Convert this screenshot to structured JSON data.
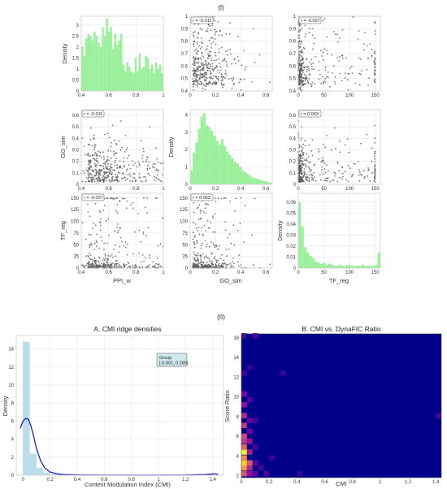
{
  "figure": {
    "section_1_label": "(I)",
    "section_2_label": "(II)"
  },
  "colors": {
    "hist_green": "#90ee90",
    "scatter_gray": "#555555",
    "hist_blue": "#add8e6",
    "kde_blue": "#1f1fcc",
    "heat_bg": "#00008b"
  },
  "chart_data": [
    {
      "id": "pairplot",
      "type": "scatter",
      "variables": [
        "PPI_w",
        "GO_sim",
        "TF_reg"
      ],
      "xlabels": [
        "PPI_w",
        "GO_sim",
        "TF_reg"
      ],
      "ylabels": [
        "Density",
        "GO_sim",
        "TF_reg"
      ],
      "diag_ylabel": "Density",
      "xlims": [
        [
          0.4,
          1.0
        ],
        [
          0.0,
          0.65
        ],
        [
          0,
          160
        ]
      ],
      "ylims": [
        [
          0.4,
          1.0
        ],
        [
          0.0,
          0.65
        ],
        [
          0,
          160
        ]
      ],
      "xticks": [
        [
          0.4,
          0.6,
          0.8,
          1.0
        ],
        [
          0.0,
          0.2,
          0.4,
          0.6
        ],
        [
          0,
          50,
          100,
          150
        ]
      ],
      "yticks": [
        [
          0.4,
          0.5,
          0.6,
          0.7,
          0.8,
          0.9,
          1.0
        ],
        [
          0.0,
          0.1,
          0.2,
          0.3,
          0.4,
          0.5,
          0.6
        ],
        [
          0,
          25,
          50,
          75,
          100,
          125,
          150
        ]
      ],
      "diag_hist": [
        {
          "var": "PPI_w",
          "range": [
            0.4,
            1.0
          ],
          "ylim": [
            0,
            3.4
          ],
          "yticks": [
            0.0,
            0.5,
            1.0,
            1.5,
            2.0,
            2.5,
            3.0
          ],
          "densities": [
            2.0,
            1.6,
            2.4,
            2.6,
            2.5,
            2.3,
            2.7,
            2.5,
            2.2,
            2.0,
            2.9,
            2.5,
            3.3,
            2.7,
            2.9,
            1.9,
            2.6,
            2.1,
            2.3,
            2.6,
            1.2,
            0.9,
            1.3,
            1.1,
            0.9,
            0.8,
            1.5,
            0.9,
            1.7,
            1.0,
            1.1,
            1.6,
            1.5,
            1.0,
            1.2,
            0.8,
            1.3,
            1.0,
            1.2,
            0.8
          ]
        },
        {
          "var": "GO_sim",
          "range": [
            0.0,
            0.65
          ],
          "ylim": [
            0,
            4.3
          ],
          "yticks": [
            0,
            1,
            2,
            3,
            4
          ],
          "densities": [
            0.8,
            1.8,
            2.4,
            3.2,
            3.9,
            4.1,
            3.4,
            3.3,
            3.1,
            2.8,
            2.5,
            2.3,
            2.6,
            2.2,
            1.9,
            1.7,
            1.5,
            1.3,
            1.2,
            1.0,
            0.8,
            0.7,
            0.6,
            0.5,
            0.4,
            0.35,
            0.3,
            0.25,
            0.2,
            0.18,
            0.15,
            0.1
          ]
        },
        {
          "var": "TF_reg",
          "range": [
            0,
            160
          ],
          "ylim": [
            0,
            0.068
          ],
          "yticks": [
            0.0,
            0.01,
            0.02,
            0.03,
            0.04,
            0.05,
            0.06
          ],
          "densities": [
            0.06,
            0.038,
            0.019,
            0.014,
            0.011,
            0.009,
            0.006,
            0.005,
            0.004,
            0.005,
            0.003,
            0.004,
            0.003,
            0.002,
            0.002,
            0.003,
            0.002,
            0.002,
            0.003,
            0.002,
            0.002,
            0.002,
            0.002,
            0.003,
            0.002,
            0.002,
            0.002,
            0.002,
            0.003,
            0.014
          ]
        }
      ],
      "correlations": [
        {
          "row": 0,
          "col": 1,
          "text": "r = -0.011"
        },
        {
          "row": 0,
          "col": 2,
          "text": "r = -0.027"
        },
        {
          "row": 1,
          "col": 0,
          "text": "r = -0.011"
        },
        {
          "row": 1,
          "col": 2,
          "text": "r = 0.063"
        },
        {
          "row": 2,
          "col": 0,
          "text": "r = -0.027"
        },
        {
          "row": 2,
          "col": 1,
          "text": "r = 0.063"
        }
      ],
      "distributions": {
        "PPI_w": "right-skewed on [0.4, 1.0], mode ~0.55",
        "GO_sim": "right-skewed on [0.0, 0.65], mode ~0.12",
        "TF_reg": "heavy-tailed on [0, 150], mass near 0, cap cluster at 150"
      }
    },
    {
      "id": "cmi-ridge",
      "type": "bar",
      "title": "A. CMI ridge densities",
      "xlabel": "Context Modulation Index (CMI)",
      "ylabel": "Density",
      "xlim": [
        -0.05,
        1.48
      ],
      "ylim": [
        0,
        15.5
      ],
      "xticks": [
        0.0,
        0.2,
        0.4,
        0.6,
        0.8,
        1.0,
        1.2,
        1.4
      ],
      "yticks": [
        0,
        2,
        4,
        6,
        8,
        10,
        12,
        14
      ],
      "hist_bins": [
        {
          "x0": -0.001,
          "x1": 0.05,
          "density": 14.8
        },
        {
          "x0": 0.05,
          "x1": 0.1,
          "density": 2.4
        },
        {
          "x0": 0.1,
          "x1": 0.15,
          "density": 0.8
        },
        {
          "x0": 0.15,
          "x1": 0.2,
          "density": 0.3
        },
        {
          "x0": 0.2,
          "x1": 0.25,
          "density": 0.1
        }
      ],
      "kde": {
        "x": [
          -0.02,
          0.0,
          0.02,
          0.04,
          0.06,
          0.08,
          0.1,
          0.13,
          0.16,
          0.2,
          0.25,
          0.3,
          0.4,
          0.6,
          0.9,
          1.2,
          1.35,
          1.42,
          1.44
        ],
        "y": [
          5.2,
          6.0,
          6.3,
          6.2,
          5.4,
          4.2,
          2.9,
          1.6,
          0.8,
          0.35,
          0.15,
          0.07,
          0.03,
          0.01,
          0.0,
          0.02,
          0.08,
          0.15,
          0.05
        ]
      },
      "legend": {
        "title": "Group",
        "entry": "[-0.001, 0.285]",
        "position": "top-right"
      }
    },
    {
      "id": "cmi-dynafic",
      "type": "heatmap",
      "title": "B. CMI vs. DynaFIC Ratio",
      "xlabel": "CMI",
      "ylabel": "Score Ratio",
      "xlim": [
        0,
        1.44
      ],
      "ylim": [
        1.8,
        16.4
      ],
      "xticks": [
        0.0,
        0.2,
        0.4,
        0.6,
        0.8,
        1.0,
        1.2,
        1.4
      ],
      "yticks": [
        2,
        4,
        6,
        8,
        10,
        12,
        14,
        16
      ],
      "colormap": "plasma-like (navy to yellow)",
      "hot_cells": [
        {
          "xc": 0.02,
          "yc": 2.2,
          "v": 0.55
        },
        {
          "xc": 0.02,
          "yc": 2.8,
          "v": 0.75
        },
        {
          "xc": 0.02,
          "yc": 3.3,
          "v": 0.9
        },
        {
          "xc": 0.02,
          "yc": 3.8,
          "v": 0.7
        },
        {
          "xc": 0.02,
          "yc": 4.4,
          "v": 1.0
        },
        {
          "xc": 0.02,
          "yc": 4.9,
          "v": 0.6
        },
        {
          "xc": 0.02,
          "yc": 5.5,
          "v": 0.45
        },
        {
          "xc": 0.02,
          "yc": 6.0,
          "v": 0.5
        },
        {
          "xc": 0.02,
          "yc": 7.1,
          "v": 0.45
        },
        {
          "xc": 0.02,
          "yc": 8.1,
          "v": 0.4
        },
        {
          "xc": 0.02,
          "yc": 9.2,
          "v": 0.3
        },
        {
          "xc": 0.02,
          "yc": 10.3,
          "v": 0.25
        },
        {
          "xc": 0.06,
          "yc": 2.2,
          "v": 0.3
        },
        {
          "xc": 0.06,
          "yc": 2.8,
          "v": 0.4
        },
        {
          "xc": 0.06,
          "yc": 3.3,
          "v": 0.55
        },
        {
          "xc": 0.06,
          "yc": 4.4,
          "v": 0.35
        },
        {
          "xc": 0.06,
          "yc": 5.5,
          "v": 0.3
        },
        {
          "xc": 0.06,
          "yc": 6.5,
          "v": 0.2
        },
        {
          "xc": 0.06,
          "yc": 7.6,
          "v": 0.2
        },
        {
          "xc": 0.06,
          "yc": 9.7,
          "v": 0.15
        },
        {
          "xc": 0.1,
          "yc": 2.2,
          "v": 0.2
        },
        {
          "xc": 0.1,
          "yc": 3.3,
          "v": 0.15
        },
        {
          "xc": 0.1,
          "yc": 4.9,
          "v": 0.12
        },
        {
          "xc": 0.1,
          "yc": 7.6,
          "v": 0.12
        },
        {
          "xc": 0.1,
          "yc": 16.2,
          "v": 0.15
        },
        {
          "xc": 0.14,
          "yc": 2.8,
          "v": 0.12
        },
        {
          "xc": 0.18,
          "yc": 2.2,
          "v": 0.12
        },
        {
          "xc": 0.22,
          "yc": 3.8,
          "v": 0.1
        },
        {
          "xc": 0.02,
          "yc": 12.4,
          "v": 0.12
        },
        {
          "xc": 0.06,
          "yc": 13.0,
          "v": 0.1
        },
        {
          "xc": 0.3,
          "yc": 12.4,
          "v": 0.1
        },
        {
          "xc": 0.02,
          "yc": 16.2,
          "v": 0.12
        },
        {
          "xc": 1.42,
          "yc": 8.1,
          "v": 0.12
        },
        {
          "xc": 0.42,
          "yc": 2.2,
          "v": 0.08
        }
      ]
    }
  ]
}
